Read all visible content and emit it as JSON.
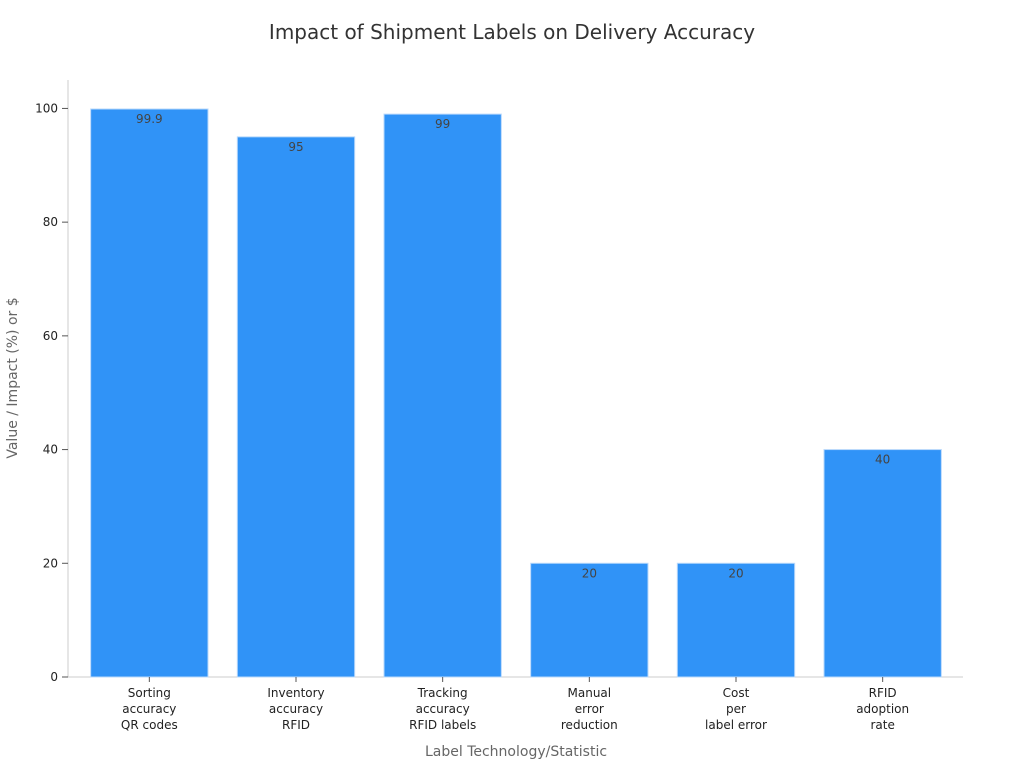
{
  "chart_data": {
    "type": "bar",
    "title": "Impact of Shipment Labels on Delivery Accuracy",
    "xlabel": "Label Technology/Statistic",
    "ylabel": "Value / Impact (%) or $",
    "categories": [
      [
        "Sorting",
        "accuracy",
        "QR codes"
      ],
      [
        "Inventory",
        "accuracy",
        "RFID"
      ],
      [
        "Tracking",
        "accuracy",
        "RFID labels"
      ],
      [
        "Manual",
        "error",
        "reduction"
      ],
      [
        "Cost",
        "per",
        "label error"
      ],
      [
        "RFID",
        "adoption",
        "rate"
      ]
    ],
    "values": [
      99.9,
      95,
      99,
      20,
      20,
      40
    ],
    "data_labels": [
      "99.9",
      "95",
      "99",
      "20",
      "20",
      "40"
    ],
    "ylim": [
      0,
      105
    ],
    "yticks": [
      0,
      20,
      40,
      60,
      80,
      100
    ],
    "grid": false,
    "bar_color": "#3093f7"
  }
}
